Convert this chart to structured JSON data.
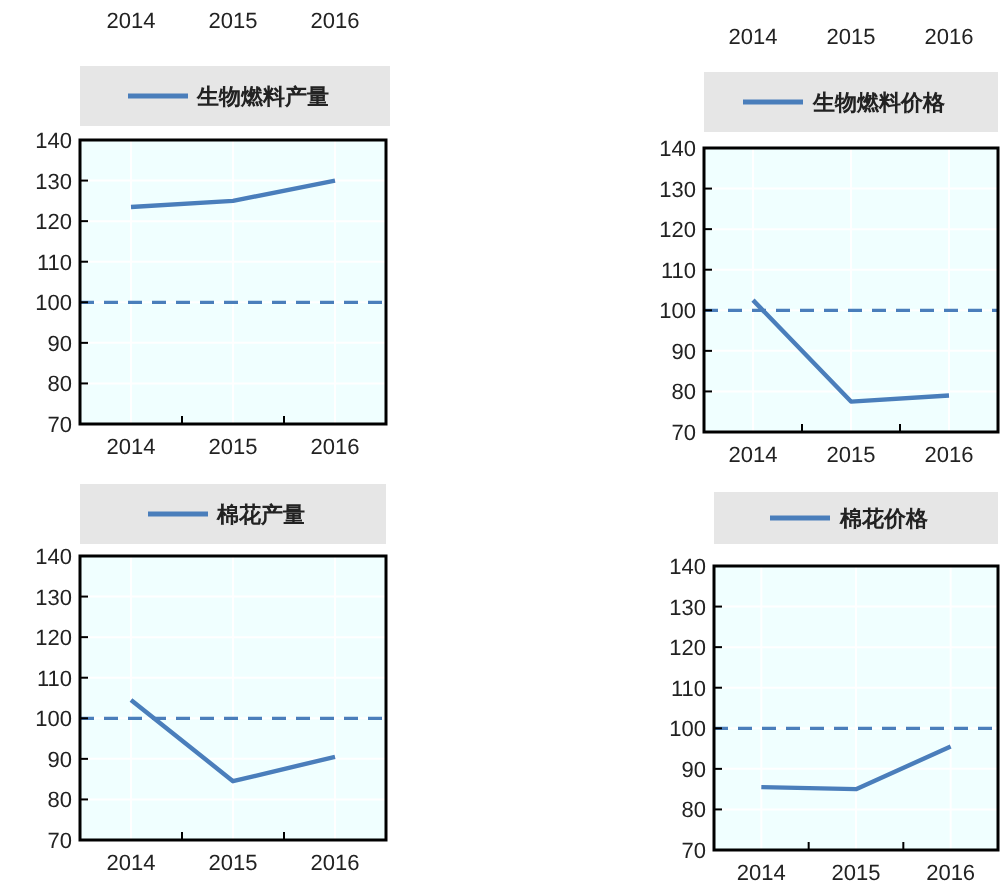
{
  "chart_data": [
    {
      "type": "other",
      "categories": [
        "2014",
        "2015",
        "2016"
      ]
    },
    {
      "type": "other",
      "categories": [
        "2014",
        "2015",
        "2016"
      ]
    },
    {
      "type": "line",
      "categories": [
        "2014",
        "2015",
        "2016"
      ],
      "series": [
        {
          "name": "生物燃料产量",
          "color": "#4a7ebb",
          "values": [
            123.5,
            125,
            130
          ]
        }
      ],
      "ylim": [
        70,
        140
      ],
      "yticks": [
        70,
        80,
        90,
        100,
        110,
        120,
        130,
        140
      ],
      "ref_lines": [
        {
          "axis": "y",
          "value": 100,
          "color": "#4a7ebb",
          "line_style": "dashed"
        }
      ],
      "legend": "top",
      "grid": true,
      "marker": "none",
      "line_style": "solid"
    },
    {
      "type": "line",
      "categories": [
        "2014",
        "2015",
        "2016"
      ],
      "series": [
        {
          "name": "生物燃料价格",
          "color": "#4a7ebb",
          "values": [
            102.5,
            77.5,
            79
          ]
        }
      ],
      "ylim": [
        70,
        140
      ],
      "yticks": [
        70,
        80,
        90,
        100,
        110,
        120,
        130,
        140
      ],
      "ref_lines": [
        {
          "axis": "y",
          "value": 100,
          "color": "#4a7ebb",
          "line_style": "dashed"
        }
      ],
      "legend": "top",
      "grid": true,
      "marker": "none",
      "line_style": "solid"
    },
    {
      "type": "line",
      "categories": [
        "2014",
        "2015",
        "2016"
      ],
      "series": [
        {
          "name": "棉花产量",
          "color": "#4a7ebb",
          "values": [
            104.5,
            84.5,
            90.5
          ]
        }
      ],
      "ylim": [
        70,
        140
      ],
      "yticks": [
        70,
        80,
        90,
        100,
        110,
        120,
        130,
        140
      ],
      "ref_lines": [
        {
          "axis": "y",
          "value": 100,
          "color": "#4a7ebb",
          "line_style": "dashed"
        }
      ],
      "legend": "top",
      "grid": true,
      "marker": "none",
      "line_style": "solid"
    },
    {
      "type": "line",
      "categories": [
        "2014",
        "2015",
        "2016"
      ],
      "series": [
        {
          "name": "棉花价格",
          "color": "#4a7ebb",
          "values": [
            85.5,
            85,
            95.5
          ]
        }
      ],
      "ylim": [
        70,
        140
      ],
      "yticks": [
        70,
        80,
        90,
        100,
        110,
        120,
        130,
        140
      ],
      "ref_lines": [
        {
          "axis": "y",
          "value": 100,
          "color": "#4a7ebb",
          "line_style": "dashed"
        }
      ],
      "legend": "top",
      "grid": true,
      "marker": "none",
      "line_style": "solid"
    }
  ]
}
